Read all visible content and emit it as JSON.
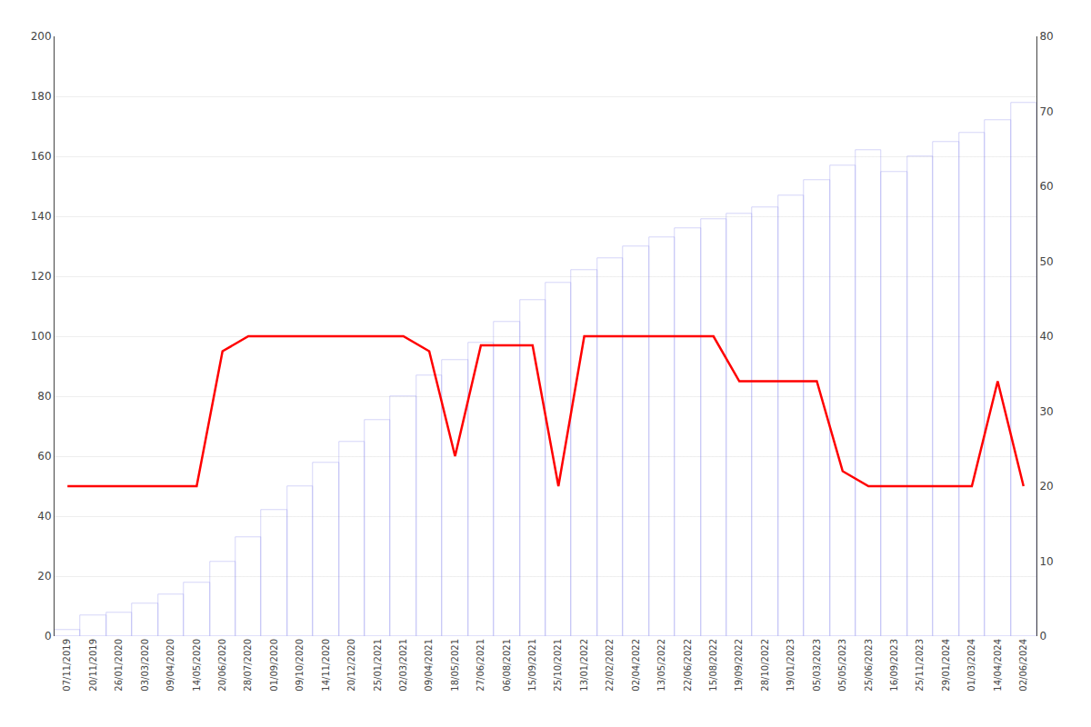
{
  "chart_data": {
    "type": "bar",
    "categories": [
      "07/11/2019",
      "20/11/2019",
      "26/01/2020",
      "03/03/2020",
      "09/04/2020",
      "14/05/2020",
      "20/06/2020",
      "28/07/2020",
      "01/09/2020",
      "09/10/2020",
      "14/11/2020",
      "20/12/2020",
      "25/01/2021",
      "02/03/2021",
      "09/04/2021",
      "18/05/2021",
      "27/06/2021",
      "06/08/2021",
      "15/09/2021",
      "25/10/2021",
      "13/01/2022",
      "22/02/2022",
      "02/04/2022",
      "13/05/2022",
      "22/06/2022",
      "15/08/2022",
      "19/09/2022",
      "28/10/2022",
      "19/01/2023",
      "05/03/2023",
      "05/05/2023",
      "25/06/2023",
      "16/09/2023",
      "25/11/2023",
      "29/01/2024",
      "01/03/2024",
      "14/04/2024",
      "02/06/2024"
    ],
    "series": [
      {
        "type": "bar",
        "color": "#8888ee",
        "values": [
          2,
          7,
          8,
          11,
          14,
          18,
          25,
          33,
          42,
          50,
          58,
          65,
          72,
          80,
          87,
          92,
          98,
          105,
          112,
          118,
          122,
          126,
          130,
          133,
          136,
          139,
          141,
          143,
          147,
          152,
          157,
          162,
          155,
          160,
          165,
          168,
          172,
          178
        ]
      },
      {
        "type": "line",
        "color": "#ff0000",
        "values": [
          49.99,
          49.99,
          49.99,
          49.99,
          49.99,
          49.99,
          94.99,
          99.99,
          99.99,
          99.99,
          99.99,
          99.99,
          99.99,
          99.99,
          94.99,
          59.99,
          96.99,
          96.99,
          96.99,
          50.0,
          99.99,
          99.99,
          100.0,
          99.99,
          99.99,
          99.99,
          84.99,
          84.99,
          84.99,
          84.99,
          54.99,
          49.99,
          49.99,
          49.99,
          49.99,
          49.99,
          84.99,
          49.99
        ]
      }
    ],
    "ylim": [
      0,
      200
    ],
    "yticks": [
      0,
      20,
      40,
      60,
      80,
      100,
      120,
      140,
      160,
      180,
      200
    ],
    "y2lim": [
      0,
      80
    ],
    "y2ticks": [
      0,
      10,
      20,
      30,
      40,
      50,
      60,
      70,
      80
    ],
    "grid": true
  }
}
